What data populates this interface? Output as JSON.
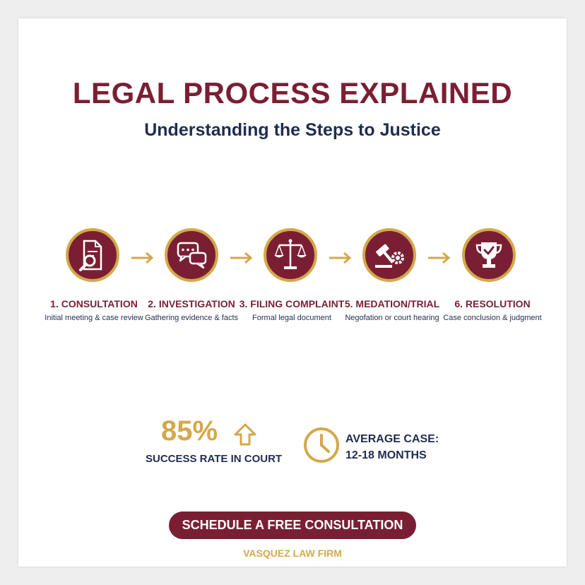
{
  "header": {
    "title": "LEGAL PROCESS EXPLAINED",
    "subtitle": "Understanding the Steps to Justice"
  },
  "colors": {
    "burgundy": "#7a1f33",
    "gold": "#d4a84a",
    "navy": "#1f2d4f",
    "background": "#ffffff"
  },
  "steps": [
    {
      "title": "1. CONSULTATION",
      "description": "Initial meeting & case review",
      "icon": "document-search-icon"
    },
    {
      "title": "2. INVESTIGATION",
      "description": "Gathering evidence & facts",
      "icon": "chat-bubbles-icon"
    },
    {
      "title": "3. FILING COMPLAINT",
      "description": "Formal legal document",
      "icon": "scales-icon"
    },
    {
      "title": "5. MEDATION/TRIAL",
      "description": "Negofation or court hearing",
      "icon": "gavel-gear-icon"
    },
    {
      "title": "6. RESOLUTION",
      "description": "Case conclusion & judgment",
      "icon": "trophy-check-icon"
    }
  ],
  "stats": {
    "success_value": "85%",
    "success_label": "SUCCESS RATE IN COURT",
    "success_icon": "arrow-up-icon",
    "duration_icon": "clock-icon",
    "duration_line1": "AVERAGE CASE:",
    "duration_line2": "12-18 MONTHS"
  },
  "cta": {
    "label": "SCHEDULE A FREE CONSULTATION"
  },
  "footer": {
    "firm_name": "VASQUEZ LAW FIRM"
  }
}
